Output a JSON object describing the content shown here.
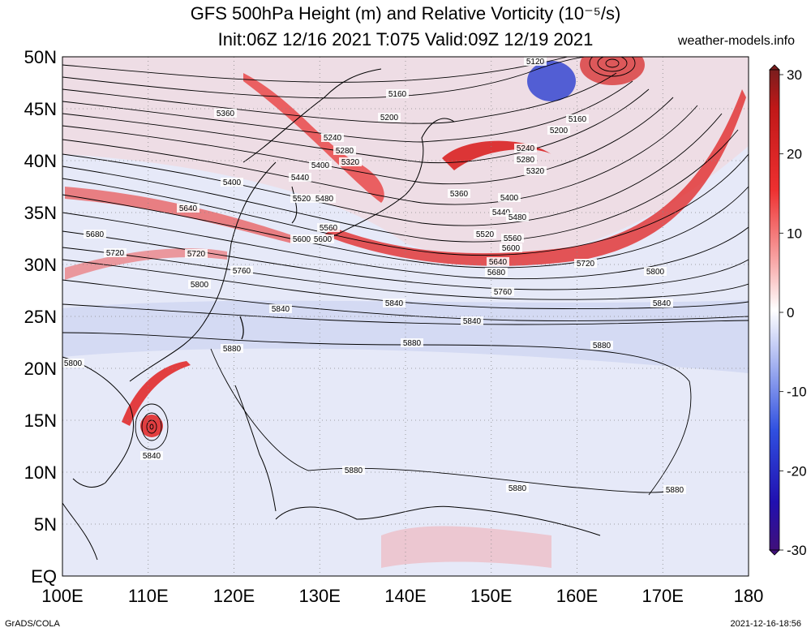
{
  "title_line1": "GFS 500hPa Height (m) and Relative Vorticity (10⁻⁵/s)",
  "title_line2": "Init:06Z 12/16 2021 T:075 Valid:09Z 12/19 2021",
  "website": "weather-models.info",
  "footer_left": "GrADS/COLA",
  "footer_right": "2021-12-16-18:56",
  "lat_labels": [
    "50N",
    "45N",
    "40N",
    "35N",
    "30N",
    "25N",
    "20N",
    "15N",
    "10N",
    "5N",
    "EQ"
  ],
  "lon_labels": [
    "100E",
    "110E",
    "120E",
    "130E",
    "140E",
    "150E",
    "160E",
    "170E",
    "180"
  ],
  "colorbar": {
    "labels": [
      "30",
      "20",
      "10",
      "0",
      "-10",
      "-20",
      "-30"
    ],
    "colors": [
      "#7a1d1d",
      "#d32020",
      "#f05a5a",
      "#f8b0b0",
      "#ffffff",
      "#aebaf2",
      "#4060e0",
      "#2010b0",
      "#40107a"
    ]
  },
  "contour_labels": [
    "5120",
    "5160",
    "5200",
    "5240",
    "5280",
    "5320",
    "5360",
    "5400",
    "5440",
    "5480",
    "5520",
    "5560",
    "5600",
    "5640",
    "5680",
    "5720",
    "5760",
    "5800",
    "5840",
    "5880"
  ],
  "colors": {
    "positive": "#e02020",
    "negative": "#3050d0",
    "neutral": "#eef0fa",
    "contour": "#000000"
  }
}
